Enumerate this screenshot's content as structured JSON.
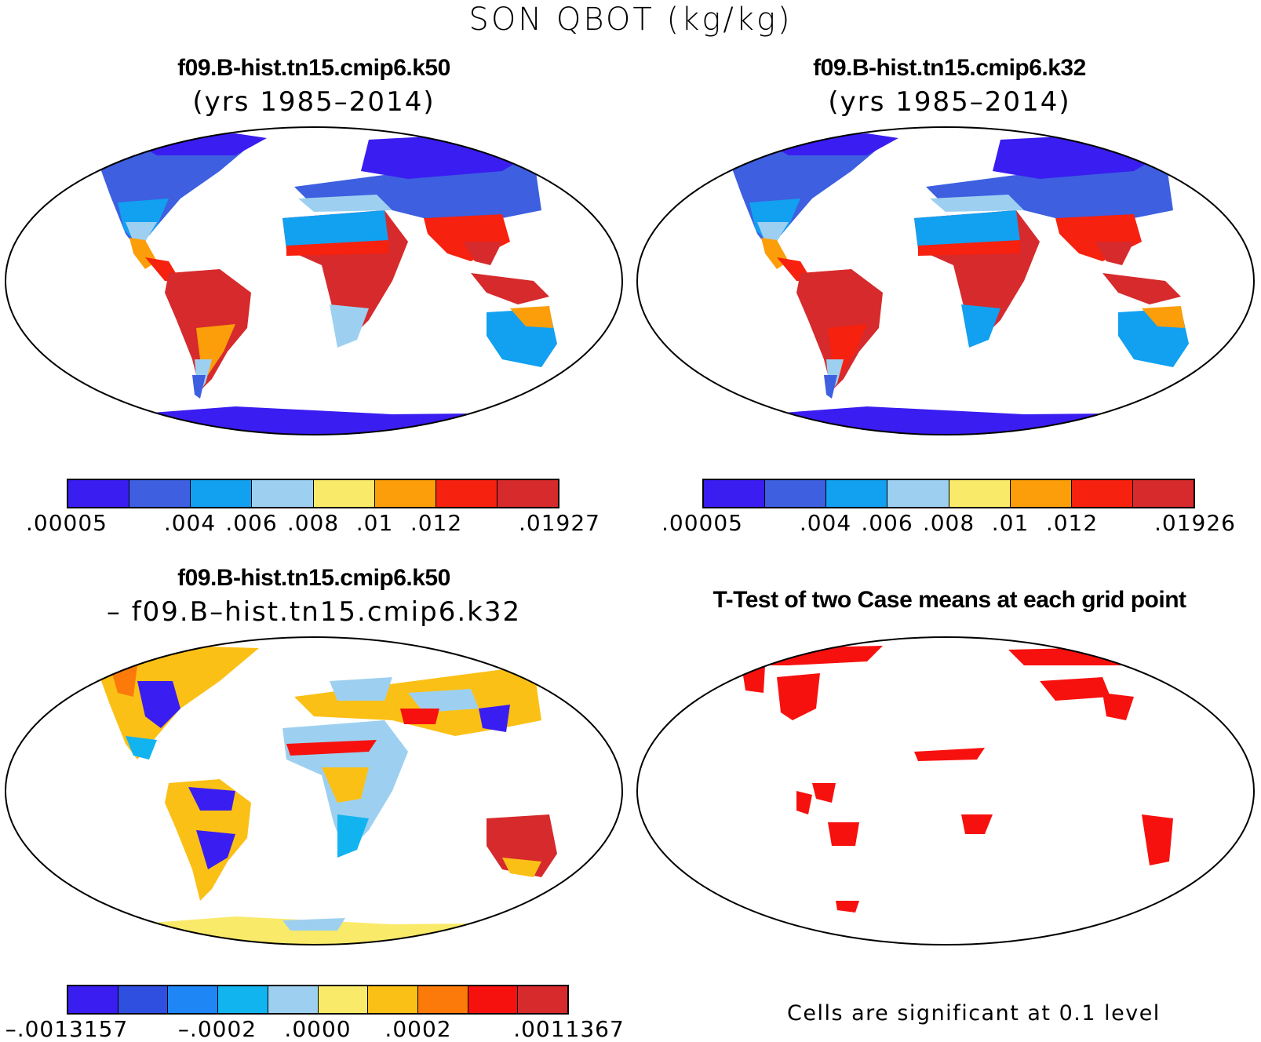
{
  "figure_title": "SON QBOT (kg/kg)",
  "panels": [
    {
      "title": "f09.B-hist.tn15.cmip6.k50",
      "subtitle": "(yrs 1985–2014)",
      "colorbar": {
        "colors": [
          "#3a1df0",
          "#3d5fe0",
          "#12a0f0",
          "#9dd0f0",
          "#faea6a",
          "#fb9e0a",
          "#f6210e",
          "#d62a2c"
        ],
        "tick_labels": [
          ".00005",
          ".004",
          ".006",
          ".008",
          ".01",
          ".012",
          ".01927"
        ]
      }
    },
    {
      "title": "f09.B-hist.tn15.cmip6.k32",
      "subtitle": "(yrs 1985–2014)",
      "colorbar": {
        "colors": [
          "#3a1df0",
          "#3d5fe0",
          "#12a0f0",
          "#9dd0f0",
          "#faea6a",
          "#fb9e0a",
          "#f6210e",
          "#d62a2c"
        ],
        "tick_labels": [
          ".00005",
          ".004",
          ".006",
          ".008",
          ".01",
          ".012",
          ".01926"
        ]
      }
    },
    {
      "title": "f09.B-hist.tn15.cmip6.k50",
      "subtitle": "– f09.B–hist.tn15.cmip6.k32",
      "colorbar": {
        "colors": [
          "#3a1df0",
          "#2f4fe0",
          "#1e86f5",
          "#12b4f0",
          "#9dd0f0",
          "#faea6a",
          "#fbc016",
          "#fb7a0a",
          "#f6110e",
          "#d62a2c"
        ],
        "tick_labels": [
          "–.0013157",
          "–.0002",
          ".0000",
          ".0002",
          ".0011367"
        ]
      }
    },
    {
      "title": "T-Test of two Case means at each grid point",
      "note": "Cells are significant at 0.1 level",
      "significant_color": "#f6110e"
    }
  ]
}
